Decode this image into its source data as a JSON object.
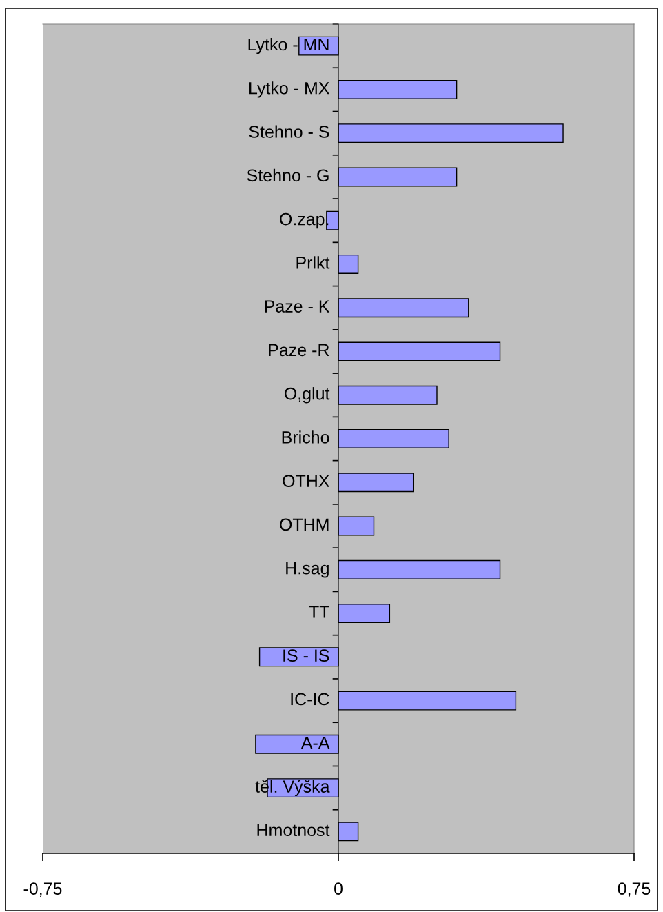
{
  "chart_data": {
    "type": "bar",
    "orientation": "horizontal",
    "categories": [
      "Lytko - MN",
      "Lytko - MX",
      "Stehno - S",
      "Stehno - G",
      "O.zap.",
      "Prlkt",
      "Paze - K",
      "Paze -R",
      "O,glut",
      "Bricho",
      "OTHX",
      "OTHM",
      "H.sag",
      "TT",
      "IS - IS",
      "IC-IC",
      "A-A",
      "těl. Výška",
      "Hmotnost"
    ],
    "values": [
      -0.1,
      0.3,
      0.57,
      0.3,
      -0.03,
      0.05,
      0.33,
      0.41,
      0.25,
      0.28,
      0.19,
      0.09,
      0.41,
      0.13,
      -0.2,
      0.45,
      -0.21,
      -0.18,
      0.05
    ],
    "color": "#9999ff",
    "xlim": [
      -0.75,
      0.75
    ],
    "xticks": [
      {
        "value": -0.75,
        "label": "-0,75"
      },
      0,
      {
        "value": 0.75,
        "label": "0,75"
      }
    ],
    "grid": false,
    "legend": false
  }
}
